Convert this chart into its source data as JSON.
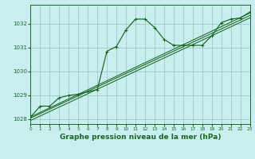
{
  "background_color": "#c8eef0",
  "grid_color": "#a0c8c8",
  "line_color": "#1a6620",
  "title": "Graphe pression niveau de la mer (hPa)",
  "title_fontsize": 6.5,
  "ylabel_values": [
    1028,
    1029,
    1030,
    1031,
    1032
  ],
  "xlim": [
    0,
    23
  ],
  "ylim": [
    1027.8,
    1032.8
  ],
  "x_ticks": [
    0,
    1,
    2,
    3,
    4,
    5,
    6,
    7,
    8,
    9,
    10,
    11,
    12,
    13,
    14,
    15,
    16,
    17,
    18,
    19,
    20,
    21,
    22,
    23
  ],
  "main_line": {
    "x": [
      0,
      1,
      2,
      3,
      4,
      5,
      6,
      7,
      8,
      9,
      10,
      11,
      12,
      13,
      14,
      15,
      16,
      17,
      18,
      19,
      20,
      21,
      22,
      23
    ],
    "y": [
      1028.1,
      1028.55,
      1028.55,
      1028.9,
      1029.0,
      1029.05,
      1029.15,
      1029.25,
      1030.85,
      1031.05,
      1031.75,
      1032.2,
      1032.2,
      1031.85,
      1031.35,
      1031.1,
      1031.1,
      1031.1,
      1031.1,
      1031.5,
      1032.05,
      1032.2,
      1032.25,
      1032.5
    ]
  },
  "smooth_line1": {
    "x": [
      0,
      23
    ],
    "y": [
      1028.1,
      1032.45
    ]
  },
  "smooth_line2": {
    "x": [
      0,
      23
    ],
    "y": [
      1028.05,
      1032.35
    ]
  },
  "smooth_line3": {
    "x": [
      0,
      23
    ],
    "y": [
      1027.95,
      1032.25
    ]
  }
}
